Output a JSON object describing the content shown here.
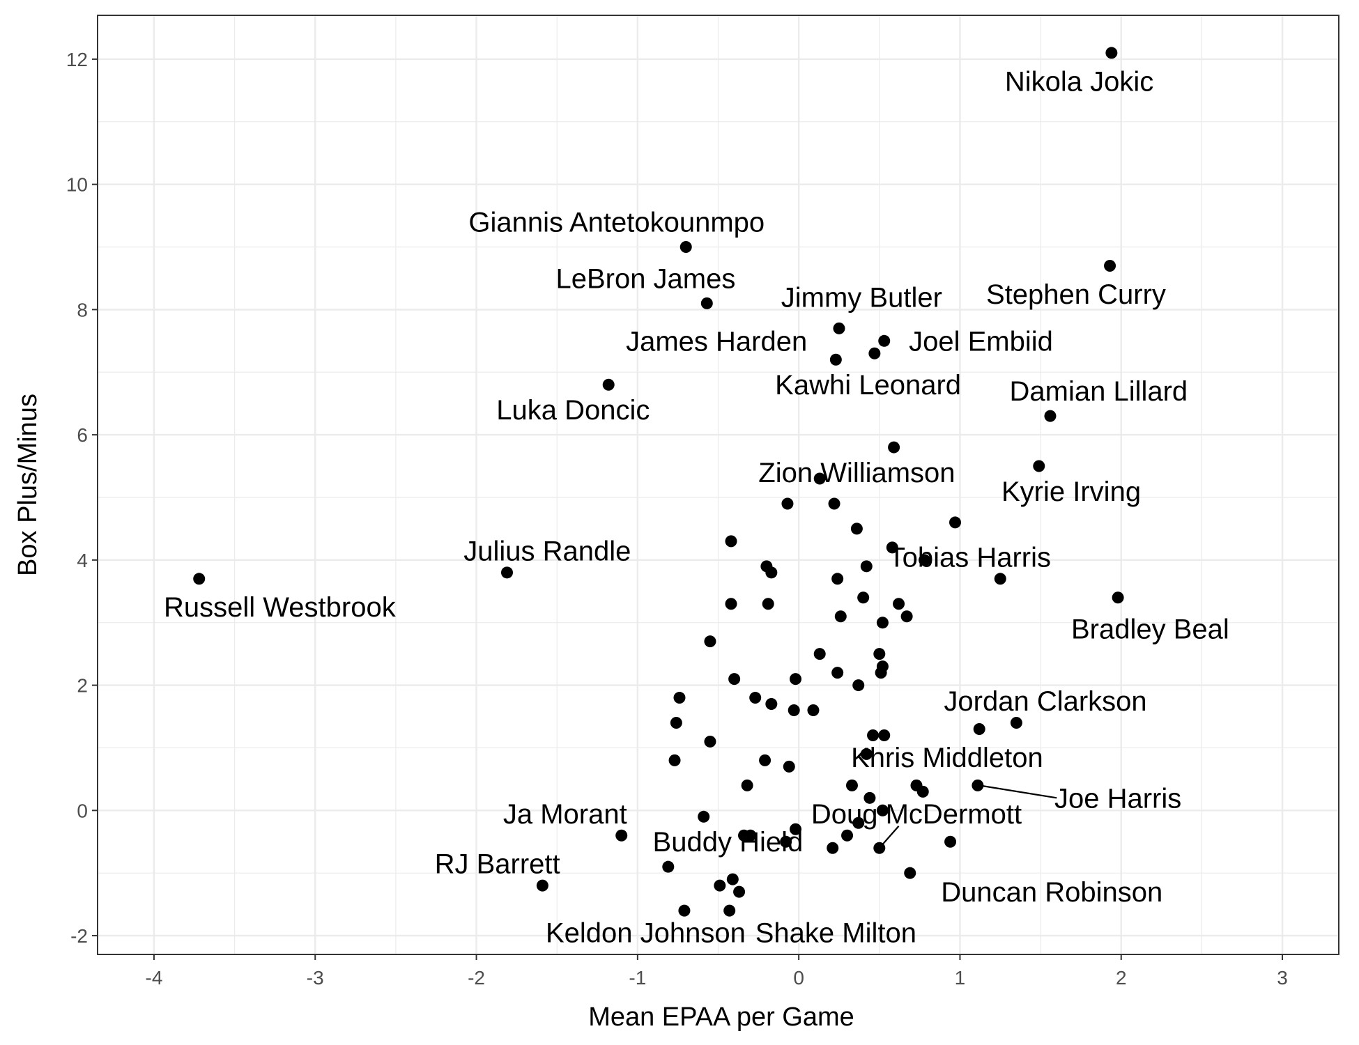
{
  "chart_data": {
    "type": "scatter",
    "xlabel": "Mean EPAA per Game",
    "ylabel": "Box Plus/Minus",
    "xlim": [
      -4.35,
      3.35
    ],
    "ylim": [
      -2.3,
      12.7
    ],
    "xticks": [
      -4,
      -3,
      -2,
      -1,
      0,
      1,
      2,
      3
    ],
    "yticks": [
      -2,
      0,
      2,
      4,
      6,
      8,
      10,
      12
    ],
    "xtick_labels": [
      "-4",
      "-3",
      "-2",
      "-1",
      "0",
      "1",
      "2",
      "3"
    ],
    "ytick_labels": [
      "-2",
      "0",
      "2",
      "4",
      "6",
      "8",
      "10",
      "12"
    ],
    "grid": true,
    "point_color": "#000000",
    "grid_color": "#ebebeb",
    "points": [
      {
        "x": 1.94,
        "y": 12.1
      },
      {
        "x": -0.7,
        "y": 9.0
      },
      {
        "x": 1.93,
        "y": 8.7
      },
      {
        "x": -0.57,
        "y": 8.1
      },
      {
        "x": 0.25,
        "y": 7.7
      },
      {
        "x": 0.53,
        "y": 7.5
      },
      {
        "x": 0.47,
        "y": 7.3
      },
      {
        "x": 0.23,
        "y": 7.2
      },
      {
        "x": -1.18,
        "y": 6.8
      },
      {
        "x": 1.56,
        "y": 6.3
      },
      {
        "x": 0.59,
        "y": 5.8
      },
      {
        "x": 1.49,
        "y": 5.5
      },
      {
        "x": 0.13,
        "y": 5.3
      },
      {
        "x": -0.07,
        "y": 4.9
      },
      {
        "x": 0.22,
        "y": 4.9
      },
      {
        "x": 0.97,
        "y": 4.6
      },
      {
        "x": 0.36,
        "y": 4.5
      },
      {
        "x": -0.42,
        "y": 4.3
      },
      {
        "x": 0.58,
        "y": 4.2
      },
      {
        "x": 0.78,
        "y": 4.0
      },
      {
        "x": -0.2,
        "y": 3.9
      },
      {
        "x": 0.42,
        "y": 3.9
      },
      {
        "x": -0.17,
        "y": 3.8
      },
      {
        "x": -1.81,
        "y": 3.8
      },
      {
        "x": -3.72,
        "y": 3.7
      },
      {
        "x": 0.24,
        "y": 3.7
      },
      {
        "x": 1.25,
        "y": 3.7
      },
      {
        "x": 1.98,
        "y": 3.4
      },
      {
        "x": 0.4,
        "y": 3.4
      },
      {
        "x": -0.42,
        "y": 3.3
      },
      {
        "x": -0.19,
        "y": 3.3
      },
      {
        "x": 0.62,
        "y": 3.3
      },
      {
        "x": 0.26,
        "y": 3.1
      },
      {
        "x": 0.67,
        "y": 3.1
      },
      {
        "x": 0.52,
        "y": 3.0
      },
      {
        "x": -0.55,
        "y": 2.7
      },
      {
        "x": 0.13,
        "y": 2.5
      },
      {
        "x": 0.5,
        "y": 2.5
      },
      {
        "x": 0.52,
        "y": 2.3
      },
      {
        "x": 0.51,
        "y": 2.2
      },
      {
        "x": 0.24,
        "y": 2.2
      },
      {
        "x": -0.4,
        "y": 2.1
      },
      {
        "x": -0.02,
        "y": 2.1
      },
      {
        "x": 0.37,
        "y": 2.0
      },
      {
        "x": -0.74,
        "y": 1.8
      },
      {
        "x": -0.27,
        "y": 1.8
      },
      {
        "x": -0.17,
        "y": 1.7
      },
      {
        "x": -0.03,
        "y": 1.6
      },
      {
        "x": 0.09,
        "y": 1.6
      },
      {
        "x": -0.76,
        "y": 1.4
      },
      {
        "x": 1.35,
        "y": 1.4
      },
      {
        "x": 1.12,
        "y": 1.3
      },
      {
        "x": 0.46,
        "y": 1.2
      },
      {
        "x": 0.53,
        "y": 1.2
      },
      {
        "x": -0.55,
        "y": 1.1
      },
      {
        "x": 0.42,
        "y": 0.9
      },
      {
        "x": -0.77,
        "y": 0.8
      },
      {
        "x": -0.21,
        "y": 0.8
      },
      {
        "x": -0.06,
        "y": 0.7
      },
      {
        "x": -0.32,
        "y": 0.4
      },
      {
        "x": 0.33,
        "y": 0.4
      },
      {
        "x": 0.73,
        "y": 0.4
      },
      {
        "x": 1.11,
        "y": 0.4
      },
      {
        "x": 0.77,
        "y": 0.3
      },
      {
        "x": 0.44,
        "y": 0.2
      },
      {
        "x": 0.52,
        "y": 0.0
      },
      {
        "x": -0.59,
        "y": -0.1
      },
      {
        "x": 0.37,
        "y": -0.2
      },
      {
        "x": -0.02,
        "y": -0.3
      },
      {
        "x": -1.1,
        "y": -0.4
      },
      {
        "x": -0.34,
        "y": -0.4
      },
      {
        "x": -0.3,
        "y": -0.4
      },
      {
        "x": 0.3,
        "y": -0.4
      },
      {
        "x": -0.08,
        "y": -0.5
      },
      {
        "x": 0.94,
        "y": -0.5
      },
      {
        "x": 0.21,
        "y": -0.6
      },
      {
        "x": 0.5,
        "y": -0.6
      },
      {
        "x": -0.81,
        "y": -0.9
      },
      {
        "x": 0.69,
        "y": -1.0
      },
      {
        "x": -0.41,
        "y": -1.1
      },
      {
        "x": -0.49,
        "y": -1.2
      },
      {
        "x": -1.59,
        "y": -1.2
      },
      {
        "x": -0.37,
        "y": -1.3
      },
      {
        "x": -0.71,
        "y": -1.6
      },
      {
        "x": -0.43,
        "y": -1.6
      }
    ],
    "labels": [
      {
        "text": "Nikola Jokic",
        "x": 1.74,
        "y": 11.65
      },
      {
        "text": "Giannis Antetokounmpo",
        "x": -1.13,
        "y": 9.4
      },
      {
        "text": "Stephen Curry",
        "x": 1.72,
        "y": 8.25
      },
      {
        "text": "LeBron James",
        "x": -0.95,
        "y": 8.5
      },
      {
        "text": "Jimmy Butler",
        "x": 0.39,
        "y": 8.2
      },
      {
        "text": "James Harden",
        "x": -0.51,
        "y": 7.5
      },
      {
        "text": "Joel Embiid",
        "x": 1.13,
        "y": 7.5
      },
      {
        "text": "Kawhi Leonard",
        "x": 0.43,
        "y": 6.8
      },
      {
        "text": "Damian Lillard",
        "x": 1.86,
        "y": 6.7
      },
      {
        "text": "Luka Doncic",
        "x": -1.4,
        "y": 6.4
      },
      {
        "text": "Zion Williamson",
        "x": 0.36,
        "y": 5.4
      },
      {
        "text": "Kyrie Irving",
        "x": 1.69,
        "y": 5.1
      },
      {
        "text": "Julius Randle",
        "x": -1.56,
        "y": 4.15
      },
      {
        "text": "Tobias Harris",
        "x": 1.06,
        "y": 4.05
      },
      {
        "text": "Russell Westbrook",
        "x": -3.22,
        "y": 3.25
      },
      {
        "text": "Bradley Beal",
        "x": 2.18,
        "y": 2.9
      },
      {
        "text": "Jordan Clarkson",
        "x": 1.53,
        "y": 1.75
      },
      {
        "text": "Khris Middleton",
        "x": 0.92,
        "y": 0.85
      },
      {
        "text": "Joe Harris",
        "x": 1.98,
        "y": 0.2
      },
      {
        "text": "Ja Morant",
        "x": -1.45,
        "y": -0.05
      },
      {
        "text": "Doug McDermott",
        "x": 0.73,
        "y": -0.05
      },
      {
        "text": "Buddy Hield",
        "x": -0.44,
        "y": -0.5
      },
      {
        "text": "RJ Barrett",
        "x": -1.87,
        "y": -0.85
      },
      {
        "text": "Duncan Robinson",
        "x": 1.57,
        "y": -1.3
      },
      {
        "text": "Keldon Johnson",
        "x": -0.95,
        "y": -1.95
      },
      {
        "text": "Shake Milton",
        "x": 0.23,
        "y": -1.95
      }
    ],
    "leaders": [
      {
        "x1": 1.12,
        "y1": 0.4,
        "x2": 1.6,
        "y2": 0.2
      },
      {
        "x1": 0.5,
        "y1": -0.6,
        "x2": 0.62,
        "y2": -0.25
      }
    ]
  }
}
